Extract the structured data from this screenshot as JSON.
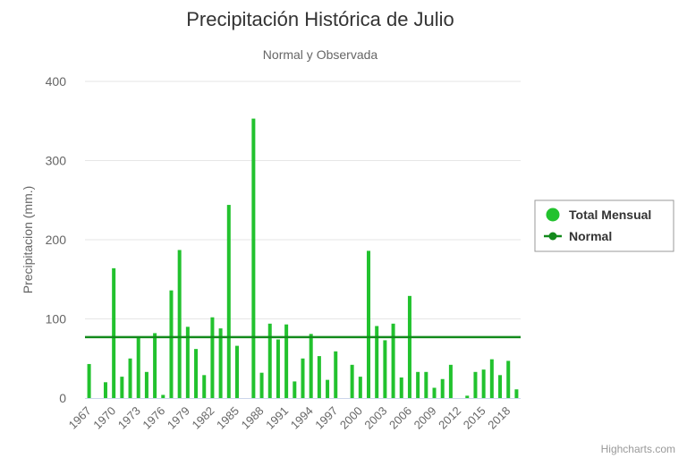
{
  "chart_data": {
    "type": "bar",
    "title": "Precipitación Histórica de Julio",
    "subtitle": "Normal y Observada",
    "ylabel": "Precipitacion (mm.)",
    "xlabel": "",
    "ylim": [
      0,
      400
    ],
    "yticks": [
      "0",
      "100",
      "200",
      "300",
      "400"
    ],
    "grid": true,
    "legend_position": "right",
    "categories": [
      "1967",
      "1968",
      "1969",
      "1970",
      "1971",
      "1972",
      "1973",
      "1974",
      "1975",
      "1976",
      "1977",
      "1978",
      "1979",
      "1980",
      "1981",
      "1982",
      "1983",
      "1984",
      "1985",
      "1986",
      "1987",
      "1988",
      "1989",
      "1990",
      "1991",
      "1992",
      "1993",
      "1994",
      "1995",
      "1996",
      "1997",
      "1998",
      "1999",
      "2000",
      "2001",
      "2002",
      "2003",
      "2004",
      "2005",
      "2006",
      "2007",
      "2008",
      "2009",
      "2010",
      "2011",
      "2012",
      "2013",
      "2014",
      "2015",
      "2016",
      "2017",
      "2018",
      "2019"
    ],
    "xtick_labels": [
      "1967",
      "1970",
      "1973",
      "1976",
      "1979",
      "1982",
      "1985",
      "1988",
      "1991",
      "1994",
      "1997",
      "2000",
      "2003",
      "2006",
      "2009",
      "2012",
      "2015",
      "2018"
    ],
    "series": [
      {
        "name": "Total Mensual",
        "type": "column",
        "color": "#22c22e",
        "values": [
          43,
          0,
          20,
          164,
          27,
          50,
          76,
          33,
          82,
          4,
          136,
          187,
          90,
          62,
          29,
          102,
          88,
          244,
          66,
          0,
          353,
          32,
          94,
          74,
          93,
          21,
          50,
          81,
          53,
          23,
          59,
          0,
          42,
          27,
          186,
          91,
          73,
          94,
          26,
          129,
          33,
          33,
          13,
          24,
          42,
          0,
          3,
          33,
          36,
          49,
          29,
          47,
          11
        ]
      },
      {
        "name": "Normal",
        "type": "line",
        "color": "#138a1c",
        "value": 77
      }
    ]
  },
  "credits": "Highcharts.com"
}
